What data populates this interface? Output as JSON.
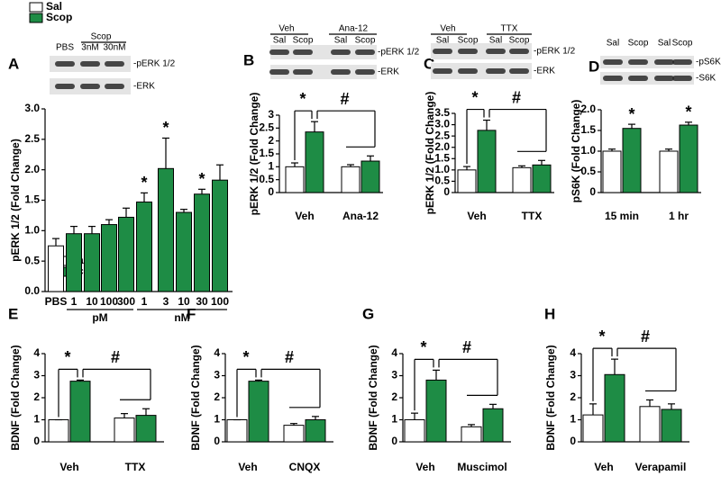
{
  "panel_labels": [
    "A",
    "B",
    "C",
    "D",
    "E",
    "F",
    "G",
    "H"
  ],
  "blots": [
    {
      "labels": [
        "PBS",
        "Scop",
        "3nM",
        "30nM"
      ],
      "bands": [
        "-pERK 1/2",
        "-ERK"
      ]
    },
    {
      "labels": [
        "Veh",
        "Ana-12",
        "Sal",
        "Scop",
        "Sal",
        "Scop"
      ],
      "bands": [
        "-pERK 1/2",
        "-ERK"
      ]
    },
    {
      "labels": [
        "Veh",
        "TTX",
        "Sal",
        "Scop",
        "Sal",
        "Scop"
      ],
      "bands": [
        "-pERK 1/2",
        "-ERK"
      ]
    },
    {
      "labels": [
        "Sal",
        "Scop",
        "Sal",
        "Scop"
      ],
      "bands": [
        "-pS6K",
        "-S6K"
      ]
    }
  ],
  "chart_data": [
    {
      "type": "bar",
      "ylabel": "pERK 1/2 (Fold Change)",
      "categories": [
        "PBS",
        "1",
        "10",
        "100",
        "300",
        "1",
        "3",
        "10",
        "30",
        "100"
      ],
      "groups": [
        "pM",
        "nM"
      ],
      "values": [
        0.75,
        0.95,
        0.95,
        1.1,
        1.22,
        1.47,
        2.02,
        1.3,
        1.6,
        1.83
      ],
      "errors": [
        0.12,
        0.12,
        0.12,
        0.08,
        0.15,
        0.15,
        0.5,
        0.05,
        0.08,
        0.25
      ],
      "colors": [
        "#ffffff",
        "#1e8c45",
        "#1e8c45",
        "#1e8c45",
        "#1e8c45",
        "#1e8c45",
        "#1e8c45",
        "#1e8c45",
        "#1e8c45",
        "#1e8c45"
      ],
      "markers": [
        null,
        null,
        null,
        null,
        null,
        "*",
        "*",
        null,
        "*",
        null
      ],
      "ylim": [
        0,
        3
      ],
      "yticks": [
        {
          "value": 0,
          "label": "0.0"
        },
        0.5,
        {
          "value": 1,
          "label": "1.0"
        },
        1.5,
        {
          "value": 2,
          "label": "2.0"
        },
        2.5,
        {
          "value": 3,
          "label": "3.0"
        }
      ]
    },
    {
      "type": "bar",
      "ylabel": "pERK 1/2 (Fold Change)",
      "categories": [
        "Veh",
        "Ana-12"
      ],
      "series": [
        {
          "name": "Sal",
          "color": "#ffffff",
          "values": [
            1.0,
            1.0
          ],
          "errors": [
            0.15,
            0.08
          ]
        },
        {
          "name": "Scop",
          "color": "#1e8c45",
          "values": [
            2.35,
            1.22
          ],
          "errors": [
            0.4,
            0.2
          ]
        }
      ],
      "significance": [
        "*",
        "#"
      ],
      "ylim": [
        0,
        3
      ],
      "yticks": [
        0,
        0.5,
        1,
        1.5,
        2,
        2.5,
        3
      ]
    },
    {
      "type": "bar",
      "ylabel": "pERK 1/2 (Fold Change)",
      "categories": [
        "Veh",
        "TTX"
      ],
      "series": [
        {
          "color": "#ffffff",
          "values": [
            1.0,
            1.1
          ],
          "errors": [
            0.15,
            0.08
          ]
        },
        {
          "color": "#1e8c45",
          "values": [
            2.75,
            1.22
          ],
          "errors": [
            0.45,
            0.2
          ]
        }
      ],
      "significance": [
        "*",
        "#"
      ],
      "ylim": [
        0,
        3.5
      ],
      "yticks": [
        0,
        0.5,
        {
          "value": 1,
          "label": "1.0"
        },
        1.5,
        {
          "value": 2,
          "label": "2.0"
        },
        2.5,
        {
          "value": 3,
          "label": "3.0"
        },
        3.5
      ]
    },
    {
      "type": "bar",
      "ylabel": "pS6K (Fold Change)",
      "categories": [
        "15 min",
        "1 hr"
      ],
      "series": [
        {
          "color": "#ffffff",
          "values": [
            1.0,
            1.0
          ],
          "errors": [
            0.05,
            0.05
          ]
        },
        {
          "color": "#1e8c45",
          "values": [
            1.55,
            1.63
          ],
          "errors": [
            0.1,
            0.07
          ],
          "markers": [
            "*",
            "*"
          ]
        }
      ],
      "ylim": [
        0,
        2
      ],
      "yticks": [
        0,
        0.5,
        {
          "value": 1,
          "label": "1.0"
        },
        1.5,
        {
          "value": 2,
          "label": "2.0"
        }
      ]
    },
    {
      "type": "bar",
      "ylabel": "BDNF (Fold Change)",
      "categories": [
        "Veh",
        "TTX"
      ],
      "series": [
        {
          "name": "Sal",
          "color": "#ffffff",
          "values": [
            1.0,
            1.08
          ],
          "errors": [
            0,
            0.2
          ]
        },
        {
          "name": "Scop",
          "color": "#1e8c45",
          "values": [
            2.75,
            1.2
          ],
          "errors": [
            0.05,
            0.3
          ]
        }
      ],
      "significance": [
        "*",
        "#"
      ],
      "ylim": [
        0,
        4
      ],
      "yticks": [
        0,
        1,
        2,
        3,
        4
      ]
    },
    {
      "type": "bar",
      "ylabel": "BDNF (Fold Change)",
      "categories": [
        "Veh",
        "CNQX"
      ],
      "series": [
        {
          "color": "#ffffff",
          "values": [
            1.0,
            0.75
          ],
          "errors": [
            0,
            0.08
          ]
        },
        {
          "color": "#1e8c45",
          "values": [
            2.75,
            1.0
          ],
          "errors": [
            0.05,
            0.15
          ]
        }
      ],
      "significance": [
        "*",
        "#"
      ],
      "ylim": [
        0,
        4
      ],
      "yticks": [
        0,
        1,
        2,
        3,
        4
      ]
    },
    {
      "type": "bar",
      "ylabel": "BDNF (Fold Change)",
      "categories": [
        "Veh",
        "Muscimol"
      ],
      "series": [
        {
          "color": "#ffffff",
          "values": [
            1.0,
            0.68
          ],
          "errors": [
            0.3,
            0.1
          ]
        },
        {
          "color": "#1e8c45",
          "values": [
            2.8,
            1.5
          ],
          "errors": [
            0.45,
            0.2
          ]
        }
      ],
      "significance": [
        "*",
        "#"
      ],
      "ylim": [
        0,
        4
      ],
      "yticks": [
        0,
        1,
        2,
        3,
        4
      ]
    },
    {
      "type": "bar",
      "ylabel": "BDNF (Fold Change)",
      "categories": [
        "Veh",
        "Verapamil"
      ],
      "series": [
        {
          "color": "#ffffff",
          "values": [
            1.22,
            1.6
          ],
          "errors": [
            0.5,
            0.3
          ]
        },
        {
          "color": "#1e8c45",
          "values": [
            3.05,
            1.47
          ],
          "errors": [
            0.7,
            0.25
          ]
        }
      ],
      "significance": [
        "*",
        "#"
      ],
      "ylim": [
        0,
        4
      ],
      "yticks": [
        0,
        1,
        2,
        3,
        4
      ]
    }
  ]
}
